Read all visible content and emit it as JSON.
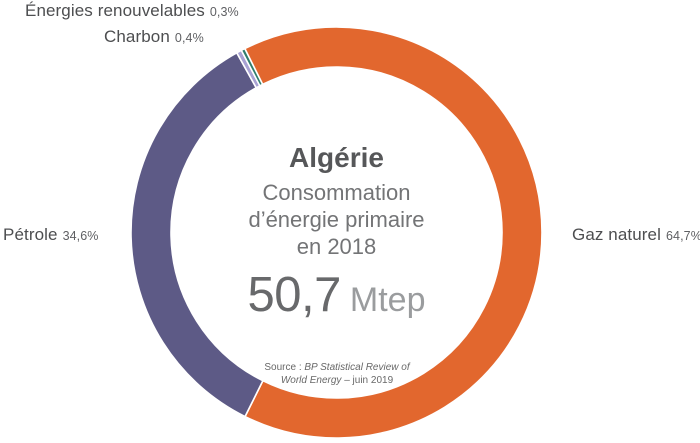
{
  "chart_data": {
    "type": "pie",
    "donut": true,
    "title": "Algérie",
    "subtitle": "Consommation d’énergie primaire en 2018",
    "subtitle_lines": [
      "Consommation",
      "d’énergie primaire",
      "en 2018"
    ],
    "center_value": "50,7",
    "center_unit": "Mtep",
    "start_angle_deg": -26.5,
    "clockwise": true,
    "legend_position": "around",
    "segments": [
      {
        "label": "Gaz naturel",
        "value": 64.7,
        "pct_label": "64,7%",
        "color": "#e2672e"
      },
      {
        "label": "Pétrole",
        "value": 34.6,
        "pct_label": "34,6%",
        "color": "#5d5a86"
      },
      {
        "label": "Charbon",
        "value": 0.4,
        "pct_label": "0,4%",
        "color": "#a8a2d3"
      },
      {
        "label": "Énergies renouvelables",
        "value": 0.3,
        "pct_label": "0,3%",
        "color": "#2f7d6c"
      }
    ]
  },
  "source": {
    "prefix": "Source : ",
    "italic1": "BP Statistical Review of",
    "italic2": "World Energy",
    "suffix": " – juin 2019"
  }
}
